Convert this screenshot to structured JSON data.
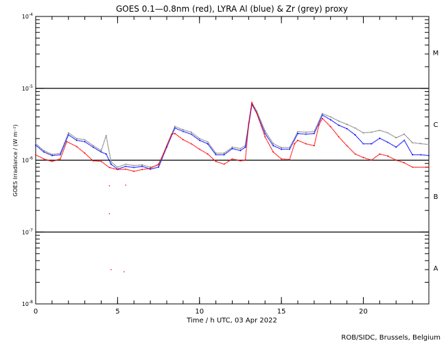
{
  "chart_data": {
    "type": "line",
    "title": "GOES 0.1—0.8nm (red), LYRA Al (blue) & Zr (grey) proxy",
    "xlabel": "Time / h UTC, 03 Apr 2022",
    "ylabel": "GOES Irradiance / (W m⁻²)",
    "xlim": [
      0,
      24
    ],
    "ylim": [
      1e-08,
      0.0001
    ],
    "yscale": "log",
    "x_ticks": [
      0,
      5,
      10,
      15,
      20
    ],
    "y_ticks": [
      {
        "value": 1e-08,
        "mant": "10",
        "exp": "-8"
      },
      {
        "value": 1e-07,
        "mant": "10",
        "exp": "-7"
      },
      {
        "value": 1e-06,
        "mant": "10",
        "exp": "-6"
      },
      {
        "value": 1e-05,
        "mant": "10",
        "exp": "-5"
      },
      {
        "value": 0.0001,
        "mant": "10",
        "exp": "-4"
      }
    ],
    "flare_classes": [
      {
        "label": "A",
        "low": 1e-08,
        "high": 1e-07
      },
      {
        "label": "B",
        "low": 1e-07,
        "high": 1e-06
      },
      {
        "label": "C",
        "low": 1e-06,
        "high": 1e-05
      },
      {
        "label": "M",
        "low": 1e-05,
        "high": 0.0001
      }
    ],
    "class_lines": [
      1e-07,
      1e-06,
      1e-05
    ],
    "credit": "ROB/SIDC, Brussels, Belgium",
    "series": [
      {
        "name": "Zr proxy",
        "color": "#808080",
        "x": [
          0,
          0.5,
          1,
          1.5,
          2,
          2.5,
          3,
          3.5,
          4,
          4.3,
          4.6,
          5,
          5.5,
          6,
          6.5,
          7,
          7.5,
          8,
          8.5,
          9,
          9.5,
          10,
          10.5,
          11,
          11.5,
          12,
          12.5,
          12.8,
          13.2,
          13.5,
          14,
          14.5,
          15,
          15.5,
          16,
          16.5,
          17,
          17.5,
          18,
          18.5,
          19,
          19.5,
          20,
          20.5,
          21,
          21.5,
          22,
          22.5,
          23,
          23.5,
          24
        ],
        "values": [
          1.7e-06,
          1.36e-06,
          1.2e-06,
          1.25e-06,
          2.4e-06,
          2e-06,
          1.93e-06,
          1.6e-06,
          1.36e-06,
          2.2e-06,
          9.5e-07,
          8e-07,
          8.8e-07,
          8.4e-07,
          8.6e-07,
          8e-07,
          8.5e-07,
          1.6e-06,
          2.95e-06,
          2.65e-06,
          2.45e-06,
          2e-06,
          1.8e-06,
          1.25e-06,
          1.25e-06,
          1.52e-06,
          1.45e-06,
          1.6e-06,
          6.3e-06,
          4.8e-06,
          2.55e-06,
          1.7e-06,
          1.5e-06,
          1.5e-06,
          2.5e-06,
          2.45e-06,
          2.5e-06,
          4.45e-06,
          4e-06,
          3.5e-06,
          3.15e-06,
          2.8e-06,
          2.4e-06,
          2.45e-06,
          2.6e-06,
          2.4e-06,
          2.05e-06,
          2.3e-06,
          1.75e-06,
          1.7e-06,
          1.65e-06
        ]
      },
      {
        "name": "LYRA Al proxy",
        "color": "#0000ff",
        "x": [
          0,
          0.5,
          1,
          1.5,
          2,
          2.5,
          3,
          3.5,
          4,
          4.3,
          4.6,
          5,
          5.5,
          6,
          6.5,
          7,
          7.5,
          8,
          8.5,
          9,
          9.5,
          10,
          10.5,
          11,
          11.5,
          12,
          12.5,
          12.8,
          13.2,
          13.5,
          14,
          14.5,
          15,
          15.5,
          16,
          16.5,
          17,
          17.5,
          18,
          18.5,
          19,
          19.5,
          20,
          20.5,
          21,
          21.5,
          22,
          22.5,
          23,
          23.5,
          24
        ],
        "values": [
          1.62e-06,
          1.3e-06,
          1.16e-06,
          1.19e-06,
          2.25e-06,
          1.89e-06,
          1.81e-06,
          1.52e-06,
          1.3e-06,
          1.22e-06,
          8.8e-07,
          7.5e-07,
          8.2e-07,
          7.9e-07,
          8.2e-07,
          7.5e-07,
          8e-07,
          1.52e-06,
          2.8e-06,
          2.51e-06,
          2.3e-06,
          1.89e-06,
          1.69e-06,
          1.19e-06,
          1.19e-06,
          1.45e-06,
          1.36e-06,
          1.52e-06,
          6e-06,
          4.5e-06,
          2.35e-06,
          1.59e-06,
          1.42e-06,
          1.42e-06,
          2.35e-06,
          2.3e-06,
          2.35e-06,
          4.25e-06,
          3.65e-06,
          3.06e-06,
          2.74e-06,
          2.25e-06,
          1.69e-06,
          1.69e-06,
          2.02e-06,
          1.77e-06,
          1.52e-06,
          1.89e-06,
          1.19e-06,
          1.19e-06,
          1.16e-06
        ]
      },
      {
        "name": "GOES 0.1-0.8nm",
        "color": "#ff0000",
        "x": [
          0,
          0.5,
          1,
          1.5,
          1.9,
          2.5,
          3,
          3.5,
          4,
          4.5,
          5,
          5.5,
          6,
          6.5,
          7,
          7.5,
          7.8,
          8.3,
          8.5,
          9,
          9.5,
          10,
          10.5,
          11,
          11.5,
          12,
          12.5,
          12.8,
          13,
          13.2,
          13.5,
          14,
          14.5,
          15,
          15.5,
          15.8,
          16,
          16.5,
          17,
          17.3,
          17.5,
          18,
          18.5,
          19,
          19.5,
          20,
          20.5,
          21,
          21.5,
          22,
          22.5,
          23,
          24
        ],
        "values": [
          1.19e-06,
          1.04e-06,
          9.6e-07,
          1.04e-06,
          1.81e-06,
          1.55e-06,
          1.25e-06,
          9.8e-07,
          9.6e-07,
          7.9e-07,
          7.4e-07,
          7.5e-07,
          7e-07,
          7.4e-07,
          7.7e-07,
          8.8e-07,
          1.22e-06,
          2.3e-06,
          2.35e-06,
          1.93e-06,
          1.69e-06,
          1.42e-06,
          1.22e-06,
          9.6e-07,
          8.8e-07,
          1.04e-06,
          9.8e-07,
          1e-06,
          3.27e-06,
          6.3e-06,
          4.5e-06,
          2.11e-06,
          1.3e-06,
          1.04e-06,
          1.02e-06,
          1.69e-06,
          1.89e-06,
          1.69e-06,
          1.59e-06,
          3.13e-06,
          3.81e-06,
          2.93e-06,
          2.11e-06,
          1.59e-06,
          1.22e-06,
          1.09e-06,
          1e-06,
          1.22e-06,
          1.14e-06,
          1e-06,
          9.2e-07,
          8e-07,
          8e-07
        ],
        "outliers": [
          [
            4.5,
            4.4e-07
          ],
          [
            4.5,
            1.8e-07
          ],
          [
            5.5,
            4.5e-07
          ],
          [
            4.6,
            3e-08
          ],
          [
            5.4,
            2.8e-08
          ]
        ]
      }
    ]
  }
}
